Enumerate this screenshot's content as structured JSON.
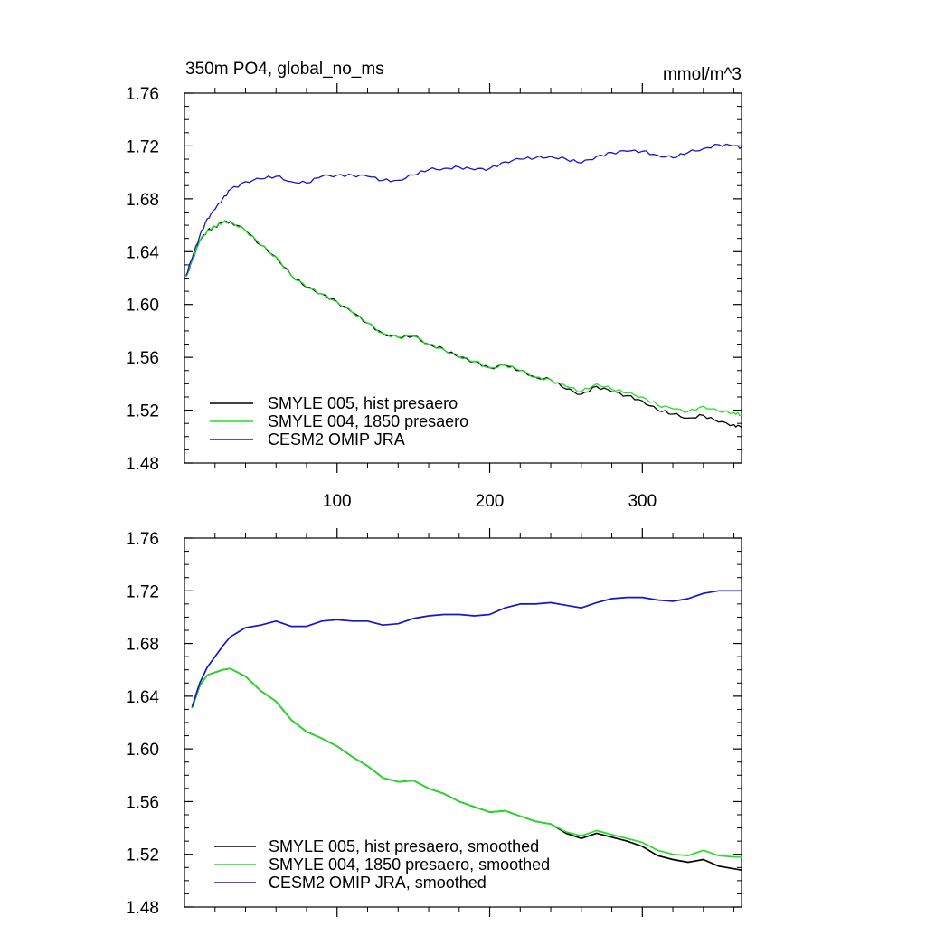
{
  "chart_data": [
    {
      "type": "line",
      "title": "350m PO4, global_no_ms",
      "units": "mmol/m^3",
      "xlim": [
        0,
        365
      ],
      "ylim": [
        1.48,
        1.76
      ],
      "xticks": [
        100,
        200,
        300
      ],
      "xtick_labels": [
        "100",
        "200",
        "300"
      ],
      "yticks": [
        1.48,
        1.52,
        1.56,
        1.6,
        1.64,
        1.68,
        1.72,
        1.76
      ],
      "ytick_labels": [
        "1.48",
        "1.52",
        "1.56",
        "1.60",
        "1.64",
        "1.68",
        "1.72",
        "1.76"
      ],
      "grid": false,
      "legend_position": "bottom-left",
      "series": [
        {
          "name": "SMYLE 005, hist presaero",
          "color": "#000000",
          "x": [
            1,
            5,
            10,
            15,
            20,
            25,
            30,
            40,
            50,
            60,
            70,
            80,
            90,
            100,
            110,
            120,
            130,
            140,
            150,
            160,
            170,
            180,
            190,
            200,
            210,
            220,
            230,
            240,
            250,
            260,
            270,
            280,
            290,
            300,
            310,
            320,
            330,
            340,
            350,
            360,
            365
          ],
          "y": [
            1.621,
            1.633,
            1.648,
            1.656,
            1.659,
            1.662,
            1.663,
            1.656,
            1.645,
            1.636,
            1.622,
            1.613,
            1.608,
            1.602,
            1.594,
            1.586,
            1.578,
            1.575,
            1.576,
            1.57,
            1.566,
            1.56,
            1.557,
            1.552,
            1.554,
            1.55,
            1.545,
            1.543,
            1.536,
            1.532,
            1.538,
            1.534,
            1.531,
            1.527,
            1.52,
            1.517,
            1.514,
            1.516,
            1.511,
            1.509,
            1.507
          ]
        },
        {
          "name": "SMYLE 004, 1850 presaero",
          "color": "#22e022",
          "x": [
            1,
            5,
            10,
            15,
            20,
            25,
            30,
            40,
            50,
            60,
            70,
            80,
            90,
            100,
            110,
            120,
            130,
            140,
            150,
            160,
            170,
            180,
            190,
            200,
            210,
            220,
            230,
            240,
            250,
            260,
            270,
            280,
            290,
            300,
            310,
            320,
            330,
            340,
            350,
            360,
            365
          ],
          "y": [
            1.621,
            1.633,
            1.648,
            1.656,
            1.659,
            1.662,
            1.663,
            1.656,
            1.645,
            1.636,
            1.622,
            1.613,
            1.608,
            1.602,
            1.594,
            1.586,
            1.578,
            1.575,
            1.576,
            1.57,
            1.566,
            1.56,
            1.557,
            1.552,
            1.554,
            1.55,
            1.545,
            1.543,
            1.538,
            1.534,
            1.54,
            1.536,
            1.533,
            1.53,
            1.524,
            1.521,
            1.519,
            1.523,
            1.519,
            1.518,
            1.516
          ]
        },
        {
          "name": "CESM2 OMIP JRA",
          "color": "#1515d0",
          "x": [
            1,
            5,
            10,
            15,
            20,
            25,
            30,
            40,
            50,
            60,
            70,
            80,
            90,
            100,
            110,
            120,
            130,
            140,
            150,
            160,
            170,
            180,
            190,
            200,
            210,
            220,
            230,
            240,
            250,
            260,
            270,
            280,
            290,
            300,
            310,
            320,
            330,
            340,
            350,
            360,
            365
          ],
          "y": [
            1.622,
            1.635,
            1.652,
            1.665,
            1.672,
            1.68,
            1.687,
            1.693,
            1.695,
            1.697,
            1.693,
            1.692,
            1.697,
            1.698,
            1.698,
            1.697,
            1.694,
            1.694,
            1.698,
            1.702,
            1.703,
            1.704,
            1.702,
            1.703,
            1.708,
            1.71,
            1.711,
            1.712,
            1.71,
            1.707,
            1.712,
            1.715,
            1.716,
            1.716,
            1.713,
            1.711,
            1.715,
            1.718,
            1.721,
            1.72,
            1.719
          ]
        }
      ]
    },
    {
      "type": "line",
      "xlim": [
        0,
        365
      ],
      "ylim": [
        1.48,
        1.76
      ],
      "yticks": [
        1.48,
        1.52,
        1.56,
        1.6,
        1.64,
        1.68,
        1.72,
        1.76
      ],
      "ytick_labels": [
        "1.48",
        "1.52",
        "1.56",
        "1.60",
        "1.64",
        "1.68",
        "1.72",
        "1.76"
      ],
      "grid": false,
      "legend_position": "bottom-left",
      "series": [
        {
          "name": "SMYLE 005, hist presaero, smoothed",
          "color": "#000000",
          "x": [
            5,
            10,
            15,
            20,
            25,
            30,
            40,
            50,
            60,
            70,
            80,
            90,
            100,
            110,
            120,
            130,
            140,
            150,
            160,
            170,
            180,
            190,
            200,
            210,
            220,
            230,
            240,
            250,
            260,
            270,
            280,
            290,
            300,
            310,
            320,
            330,
            340,
            350,
            360,
            365
          ],
          "y": [
            1.631,
            1.648,
            1.656,
            1.658,
            1.66,
            1.661,
            1.655,
            1.644,
            1.636,
            1.622,
            1.613,
            1.608,
            1.602,
            1.594,
            1.587,
            1.578,
            1.575,
            1.576,
            1.57,
            1.566,
            1.56,
            1.556,
            1.552,
            1.553,
            1.549,
            1.545,
            1.543,
            1.536,
            1.532,
            1.536,
            1.533,
            1.53,
            1.526,
            1.519,
            1.516,
            1.514,
            1.516,
            1.511,
            1.509,
            1.508
          ]
        },
        {
          "name": "SMYLE 004, 1850 presaero, smoothed",
          "color": "#22e022",
          "x": [
            5,
            10,
            15,
            20,
            25,
            30,
            40,
            50,
            60,
            70,
            80,
            90,
            100,
            110,
            120,
            130,
            140,
            150,
            160,
            170,
            180,
            190,
            200,
            210,
            220,
            230,
            240,
            250,
            260,
            270,
            280,
            290,
            300,
            310,
            320,
            330,
            340,
            350,
            360,
            365
          ],
          "y": [
            1.631,
            1.648,
            1.656,
            1.658,
            1.66,
            1.661,
            1.655,
            1.644,
            1.636,
            1.622,
            1.613,
            1.608,
            1.602,
            1.594,
            1.587,
            1.578,
            1.575,
            1.576,
            1.57,
            1.566,
            1.56,
            1.556,
            1.552,
            1.553,
            1.549,
            1.545,
            1.543,
            1.537,
            1.534,
            1.538,
            1.535,
            1.532,
            1.529,
            1.523,
            1.52,
            1.519,
            1.523,
            1.519,
            1.518,
            1.518
          ]
        },
        {
          "name": "CESM2 OMIP JRA, smoothed",
          "color": "#1515d0",
          "x": [
            5,
            10,
            15,
            20,
            25,
            30,
            40,
            50,
            60,
            70,
            80,
            90,
            100,
            110,
            120,
            130,
            140,
            150,
            160,
            170,
            180,
            190,
            200,
            210,
            220,
            230,
            240,
            250,
            260,
            270,
            280,
            290,
            300,
            310,
            320,
            330,
            340,
            350,
            360,
            365
          ],
          "y": [
            1.632,
            1.65,
            1.662,
            1.67,
            1.678,
            1.685,
            1.692,
            1.694,
            1.697,
            1.693,
            1.693,
            1.697,
            1.698,
            1.697,
            1.697,
            1.694,
            1.695,
            1.699,
            1.701,
            1.702,
            1.702,
            1.701,
            1.702,
            1.707,
            1.71,
            1.71,
            1.711,
            1.709,
            1.707,
            1.711,
            1.714,
            1.715,
            1.715,
            1.713,
            1.712,
            1.714,
            1.718,
            1.72,
            1.72,
            1.72
          ]
        }
      ]
    }
  ]
}
